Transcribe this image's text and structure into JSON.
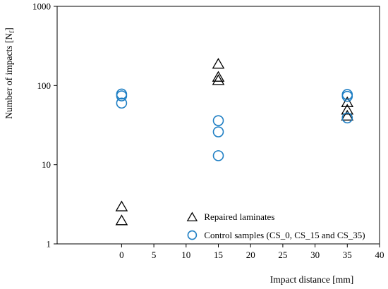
{
  "chart_data": {
    "type": "scatter",
    "xlabel": "Impact distance [mm]",
    "ylabel": "Number of impacts [N",
    "ylabel_sub": "f",
    "ylabel_end": "]",
    "xlim": [
      -10,
      40
    ],
    "ylim": [
      1,
      1000
    ],
    "yscale": "log",
    "grid": false,
    "legend_position": "bottom-center-inside",
    "x_ticks": [
      0,
      5,
      10,
      15,
      20,
      25,
      30,
      35,
      40
    ],
    "x_tick_labels": [
      "0",
      "5",
      "10",
      "15",
      "20",
      "25",
      "30",
      "35",
      "40"
    ],
    "y_ticks": [
      1,
      10,
      100,
      1000
    ],
    "y_tick_labels": [
      "1",
      "10",
      "100",
      "1000"
    ],
    "series": [
      {
        "name": "Repaired laminates",
        "marker": "triangle",
        "color": "#000000",
        "points": [
          {
            "x": 0,
            "y": 3
          },
          {
            "x": 0,
            "y": 2
          },
          {
            "x": 15,
            "y": 190
          },
          {
            "x": 15,
            "y": 130
          },
          {
            "x": 15,
            "y": 118
          },
          {
            "x": 35,
            "y": 62
          },
          {
            "x": 35,
            "y": 50
          },
          {
            "x": 35,
            "y": 42
          }
        ]
      },
      {
        "name": "Control samples (CS_0, CS_15 and CS_35)",
        "marker": "circle",
        "color": "#1f7fc4",
        "points": [
          {
            "x": 0,
            "y": 78
          },
          {
            "x": 0,
            "y": 74
          },
          {
            "x": 0,
            "y": 60
          },
          {
            "x": 15,
            "y": 36
          },
          {
            "x": 15,
            "y": 26
          },
          {
            "x": 15,
            "y": 13
          },
          {
            "x": 35,
            "y": 77
          },
          {
            "x": 35,
            "y": 73
          },
          {
            "x": 35,
            "y": 39
          }
        ]
      }
    ]
  }
}
